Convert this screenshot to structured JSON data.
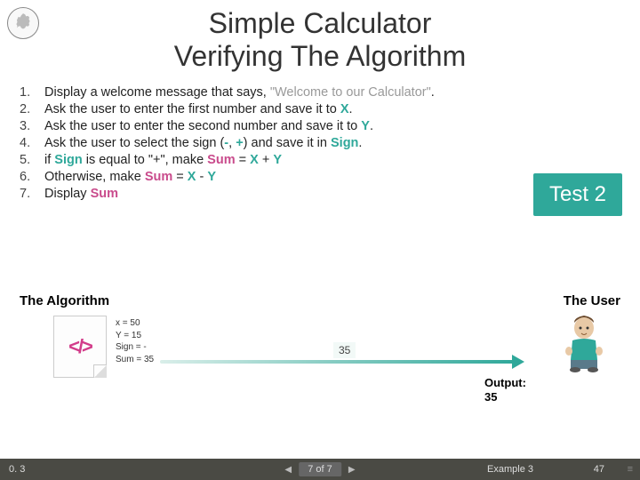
{
  "title": {
    "line1": "Simple Calculator",
    "line2": "Verifying The Algorithm"
  },
  "steps": [
    {
      "n": "1.",
      "html": "Display a welcome message that says, <span class='kw-welcome'>\"Welcome to our Calculator\"</span>."
    },
    {
      "n": "2.",
      "html": "Ask the user to enter the first number and save it to <span class='kw-var'>X</span>."
    },
    {
      "n": "3.",
      "html": "Ask the user to enter the second number and save it to <span class='kw-var'>Y</span>."
    },
    {
      "n": "4.",
      "html": "Ask the user to select the sign (<span class='kw-var'>-</span>, <span class='kw-var'>+</span>) and save it in <span class='kw-var'>Sign</span>."
    },
    {
      "n": "5.",
      "html": "if <span class='kw-var'>Sign</span> is equal to \"+\", make <span class='kw-res'>Sum</span> = <span class='kw-var'>X</span> + <span class='kw-var'>Y</span>"
    },
    {
      "n": "6.",
      "html": "Otherwise, make <span class='kw-res'>Sum</span> = <span class='kw-var'>X</span> - <span class='kw-var'>Y</span>"
    },
    {
      "n": "7.",
      "html": "Display <span class='kw-res'>Sum</span>"
    }
  ],
  "test_badge": "Test 2",
  "labels": {
    "left": "The Algorithm",
    "right": "The User"
  },
  "vars": {
    "x": "x = 50",
    "y": "Y = 15",
    "sign": "Sign = -",
    "sum": "Sum = 35"
  },
  "arrow_mid": "35",
  "output": {
    "label": "Output:",
    "value": "35"
  },
  "footer": {
    "version": "0. 3",
    "page_pill": "7 of 7",
    "example": "Example 3",
    "page_num": "47"
  },
  "colors": {
    "accent": "#2fa89a",
    "result": "#c94b8c",
    "footer_bg": "#4a4a44"
  }
}
